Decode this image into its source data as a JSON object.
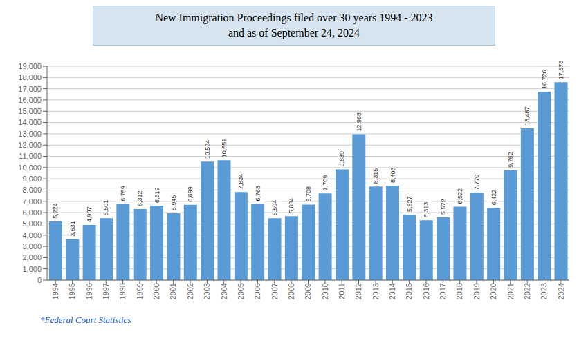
{
  "chart_data": {
    "type": "bar",
    "title": "New Immigration Proceedings filed over 30 years 1994 - 2023",
    "subtitle": "and as of September 24, 2024",
    "categories": [
      "1994",
      "1995",
      "1996",
      "1997",
      "1998",
      "1999",
      "2000",
      "2001",
      "2002",
      "2003",
      "2004",
      "2005",
      "2006",
      "2007",
      "2008",
      "2009",
      "2010",
      "2011",
      "2012",
      "2013",
      "2014",
      "2015",
      "2016",
      "2017",
      "2018",
      "2019",
      "2020",
      "2021",
      "2022",
      "2023",
      "2024"
    ],
    "values": [
      5224,
      3631,
      4907,
      5501,
      6759,
      6312,
      6619,
      5945,
      6699,
      10524,
      10651,
      7834,
      6768,
      5504,
      5684,
      6708,
      7709,
      9839,
      12968,
      8315,
      8403,
      5827,
      5313,
      5572,
      6522,
      7770,
      6422,
      9762,
      13487,
      16726,
      17576
    ],
    "value_labels": [
      "5,224",
      "3,631",
      "4,907",
      "5,501",
      "6,759",
      "6,312",
      "6,619",
      "5,945",
      "6,699",
      "10,524",
      "10,651",
      "7,834",
      "6,768",
      "5,504",
      "5,684",
      "6,708",
      "7,709",
      "9,839",
      "12,968",
      "8,315",
      "8,403",
      "5,827",
      "5,313",
      "5,572",
      "6,522",
      "7,770",
      "6,422",
      "9,762",
      "13,487",
      "16,726",
      "17,576"
    ],
    "data_labels": true,
    "color": "#5b9bd5",
    "ylim": [
      0,
      19000
    ],
    "yticks": [
      0,
      {
        "value": 1000,
        "label": "1,000"
      },
      {
        "value": 2000,
        "label": "2,000"
      },
      {
        "value": 3000,
        "label": "3,000"
      },
      {
        "value": 4000,
        "label": "4,000"
      },
      {
        "value": 5000,
        "label": "5,000"
      },
      {
        "value": 6000,
        "label": "6,000"
      },
      {
        "value": 7000,
        "label": "7,000"
      },
      {
        "value": 8000,
        "label": "8,000"
      },
      {
        "value": 9000,
        "label": "9,000"
      },
      {
        "value": 10000,
        "label": "10,000"
      },
      {
        "value": 11000,
        "label": "11,000"
      },
      {
        "value": 12000,
        "label": "12,000"
      },
      {
        "value": 13000,
        "label": "13,000"
      },
      {
        "value": 14000,
        "label": "14,000"
      },
      {
        "value": 15000,
        "label": "15,000"
      },
      {
        "value": 16000,
        "label": "16,000"
      },
      {
        "value": 17000,
        "label": "17,000"
      },
      {
        "value": 18000,
        "label": "18,000"
      },
      {
        "value": 19000,
        "label": "19,000"
      }
    ],
    "grid": true,
    "annotations": [
      "*Federal Court Statistics"
    ]
  }
}
